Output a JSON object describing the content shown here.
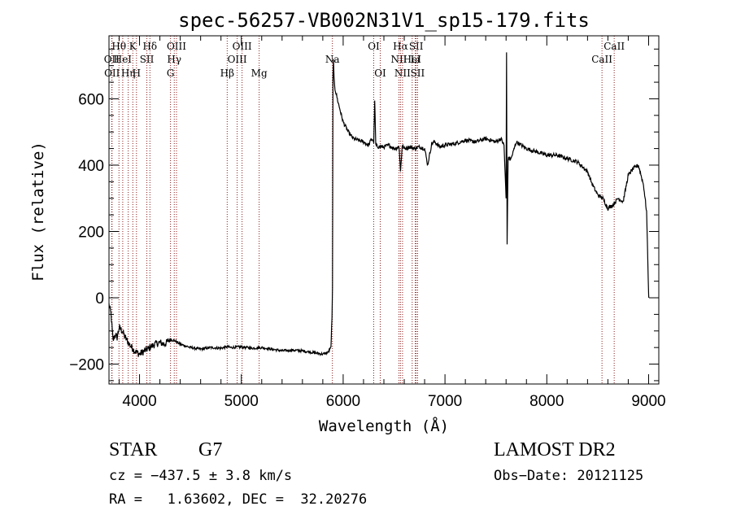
{
  "chart_data": {
    "type": "line",
    "title": "spec-56257-VB002N31V1_sp15-179.fits",
    "xlabel": "Wavelength (Å)",
    "ylabel": "Flux (relative)",
    "xlim": [
      3700,
      9100
    ],
    "ylim": [
      -260,
      790
    ],
    "xticks": [
      4000,
      5000,
      6000,
      7000,
      8000,
      9000
    ],
    "yticks": [
      -200,
      0,
      200,
      400,
      600
    ],
    "grid": false,
    "series": [
      {
        "x": [
          3700,
          3720,
          3740,
          3760,
          3780,
          3800,
          3830,
          3860,
          3900,
          3950,
          4000,
          4050,
          4100,
          4150,
          4200,
          4250,
          4300,
          4350,
          4400,
          4500,
          4600,
          4700,
          4800,
          4860,
          4900,
          5000,
          5100,
          5200,
          5300,
          5400,
          5500,
          5600,
          5700,
          5800,
          5850,
          5880,
          5890,
          5895,
          5900,
          5905,
          5910,
          5920,
          5950,
          6000,
          6050,
          6100,
          6150,
          6200,
          6250,
          6280,
          6300,
          6310,
          6320,
          6350,
          6400,
          6450,
          6500,
          6550,
          6563,
          6580,
          6600,
          6650,
          6700,
          6750,
          6800,
          6830,
          6870,
          6900,
          6950,
          7000,
          7100,
          7200,
          7300,
          7400,
          7500,
          7550,
          7580,
          7600,
          7605,
          7610,
          7620,
          7650,
          7700,
          7800,
          7900,
          8000,
          8100,
          8200,
          8300,
          8400,
          8450,
          8500,
          8550,
          8600,
          8650,
          8700,
          8750,
          8800,
          8850,
          8900,
          8950,
          8980,
          9000,
          9002
        ],
        "y": [
          -20,
          -50,
          -130,
          -110,
          -120,
          -90,
          -100,
          -120,
          -140,
          -160,
          -170,
          -160,
          -150,
          -140,
          -135,
          -140,
          -125,
          -130,
          -140,
          -150,
          -155,
          -150,
          -152,
          -148,
          -150,
          -148,
          -152,
          -150,
          -155,
          -160,
          -158,
          -160,
          -165,
          -170,
          -165,
          -150,
          -60,
          30,
          670,
          720,
          660,
          630,
          590,
          530,
          500,
          480,
          475,
          470,
          460,
          480,
          470,
          590,
          460,
          455,
          455,
          460,
          450,
          455,
          380,
          460,
          450,
          455,
          450,
          455,
          450,
          400,
          465,
          470,
          455,
          460,
          465,
          475,
          470,
          480,
          470,
          480,
          460,
          300,
          740,
          160,
          420,
          420,
          470,
          450,
          440,
          430,
          430,
          420,
          410,
          380,
          340,
          310,
          300,
          270,
          280,
          300,
          290,
          370,
          390,
          400,
          340,
          260,
          10,
          0
        ]
      }
    ],
    "line_markers": [
      {
        "wl": 3727,
        "row": 1,
        "label": "OII"
      },
      {
        "wl": 3730,
        "row": 2,
        "label": "OII"
      },
      {
        "wl": 3798,
        "row": 0,
        "label": "Hθ"
      },
      {
        "wl": 3835,
        "row": 1,
        "label": "HeI"
      },
      {
        "wl": 3889,
        "row": 2,
        "label": "Hη"
      },
      {
        "wl": 3934,
        "row": 0,
        "label": "K"
      },
      {
        "wl": 3970,
        "row": 2,
        "label": "H"
      },
      {
        "wl": 4072,
        "row": 1,
        "label": "SII"
      },
      {
        "wl": 4102,
        "row": 0,
        "label": "Hδ"
      },
      {
        "wl": 4304,
        "row": 2,
        "label": "G"
      },
      {
        "wl": 4341,
        "row": 1,
        "label": "Hγ"
      },
      {
        "wl": 4363,
        "row": 0,
        "label": "OIII"
      },
      {
        "wl": 4861,
        "row": 2,
        "label": "Hβ"
      },
      {
        "wl": 4959,
        "row": 1,
        "label": "OIII"
      },
      {
        "wl": 5007,
        "row": 0,
        "label": "OIII"
      },
      {
        "wl": 5175,
        "row": 2,
        "label": "Mg"
      },
      {
        "wl": 5894,
        "row": 1,
        "label": "Na"
      },
      {
        "wl": 6300,
        "row": 0,
        "label": "OI"
      },
      {
        "wl": 6364,
        "row": 2,
        "label": "OI"
      },
      {
        "wl": 6548,
        "row": 1,
        "label": "NII"
      },
      {
        "wl": 6563,
        "row": 0,
        "label": "Hα"
      },
      {
        "wl": 6583,
        "row": 2,
        "label": "NII"
      },
      {
        "wl": 6678,
        "row": 1,
        "label": "HeI"
      },
      {
        "wl": 6717,
        "row": 0,
        "label": "SII"
      },
      {
        "wl": 6731,
        "row": 2,
        "label": "SII"
      },
      {
        "wl": 6708,
        "row": 1,
        "label": "Li"
      },
      {
        "wl": 8542,
        "row": 1,
        "label": "CaII"
      },
      {
        "wl": 8662,
        "row": 0,
        "label": "CaII"
      }
    ]
  },
  "info": {
    "object_class": "STAR",
    "subclass": "G7",
    "survey": "LAMOST DR2",
    "cz": "cz = −437.5 ± 3.8 km/s",
    "obs_date": "Obs−Date: 20121125",
    "coords": "RA =   1.63602, DEC =  32.20276"
  },
  "colors": {
    "spectrum": "#000000",
    "marker_line": "#8b1a1a"
  }
}
